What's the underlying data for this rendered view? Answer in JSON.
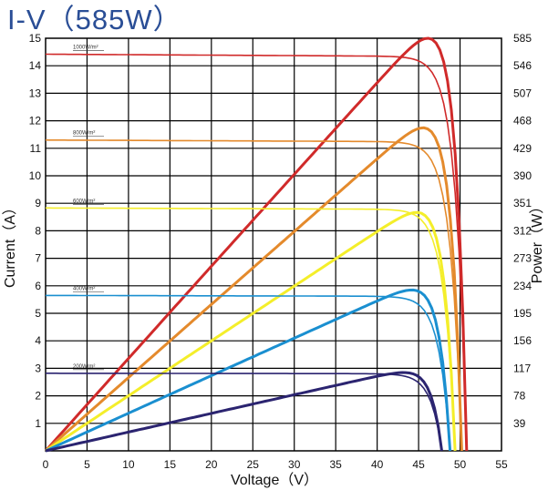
{
  "title": "I-V（585W）",
  "chart_data": {
    "type": "line",
    "title": "I-V（585W）",
    "xlabel": "Voltage（V）",
    "ylabel_left": "Current（A）",
    "ylabel_right": "Power（W）",
    "xlim": [
      0,
      55
    ],
    "ylim_left": [
      0,
      15
    ],
    "ylim_right": [
      0,
      585
    ],
    "x_ticks": [
      "0",
      "5",
      "10",
      "15",
      "20",
      "25",
      "30",
      "35",
      "40",
      "45",
      "50",
      "55"
    ],
    "y_left_ticks": [
      "1",
      "2",
      "3",
      "4",
      "5",
      "6",
      "7",
      "8",
      "9",
      "10",
      "11",
      "12",
      "13",
      "14",
      "15"
    ],
    "y_right_ticks": [
      "39",
      "78",
      "117",
      "156",
      "195",
      "234",
      "273",
      "312",
      "351",
      "390",
      "429",
      "468",
      "507",
      "546",
      "585"
    ],
    "grid": true,
    "series": [
      {
        "name": "1000W/m²",
        "color": "#d02a2a",
        "isc": 14.42,
        "voc": 50.8,
        "pmax": 585,
        "vmp": 40.5
      },
      {
        "name": "800W/m²",
        "color": "#e48a2c",
        "isc": 11.3,
        "voc": 50.2,
        "pmax": 458,
        "vmp": 40.8
      },
      {
        "name": "600W/m²",
        "color": "#f4ee2a",
        "isc": 8.83,
        "voc": 49.4,
        "pmax": 338,
        "vmp": 41.0
      },
      {
        "name": "400W/m²",
        "color": "#1a8fd0",
        "isc": 5.65,
        "voc": 48.8,
        "pmax": 228,
        "vmp": 40.2
      },
      {
        "name": "200W/m²",
        "color": "#2b2470",
        "isc": 2.82,
        "voc": 47.8,
        "pmax": 111,
        "vmp": 40.0
      }
    ]
  }
}
